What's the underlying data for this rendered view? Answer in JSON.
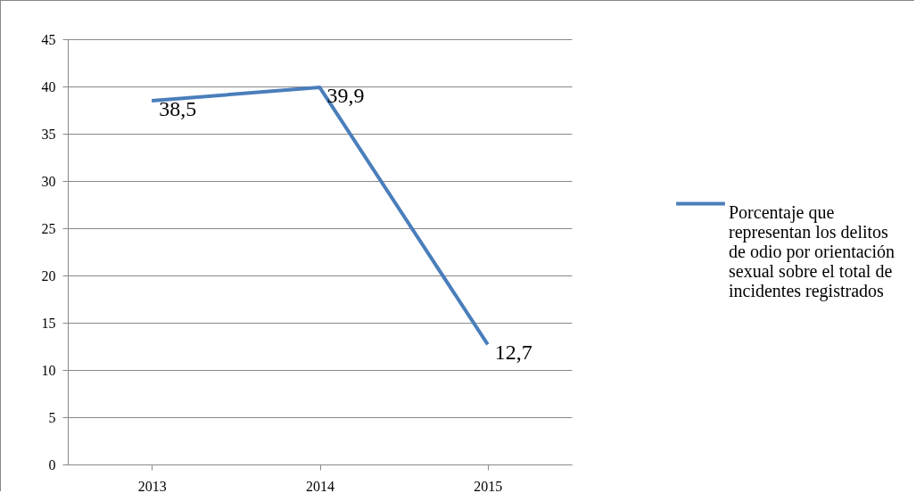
{
  "chart_data": {
    "type": "line",
    "categories": [
      "2013",
      "2014",
      "2015"
    ],
    "series": [
      {
        "name": "Porcentaje que representan los delitos de odio por orientación sexual sobre el total de incidentes registrados",
        "color": "#4a7ebb",
        "values": [
          38.5,
          39.9,
          12.7
        ],
        "value_labels": [
          "38,5",
          "39,9",
          "12,7"
        ]
      }
    ],
    "ylim": [
      0,
      45
    ],
    "yticks": [
      0,
      5,
      10,
      15,
      20,
      25,
      30,
      35,
      40,
      45
    ],
    "grid": "y",
    "legend": "right",
    "marker": "none",
    "line_style": "solid"
  }
}
